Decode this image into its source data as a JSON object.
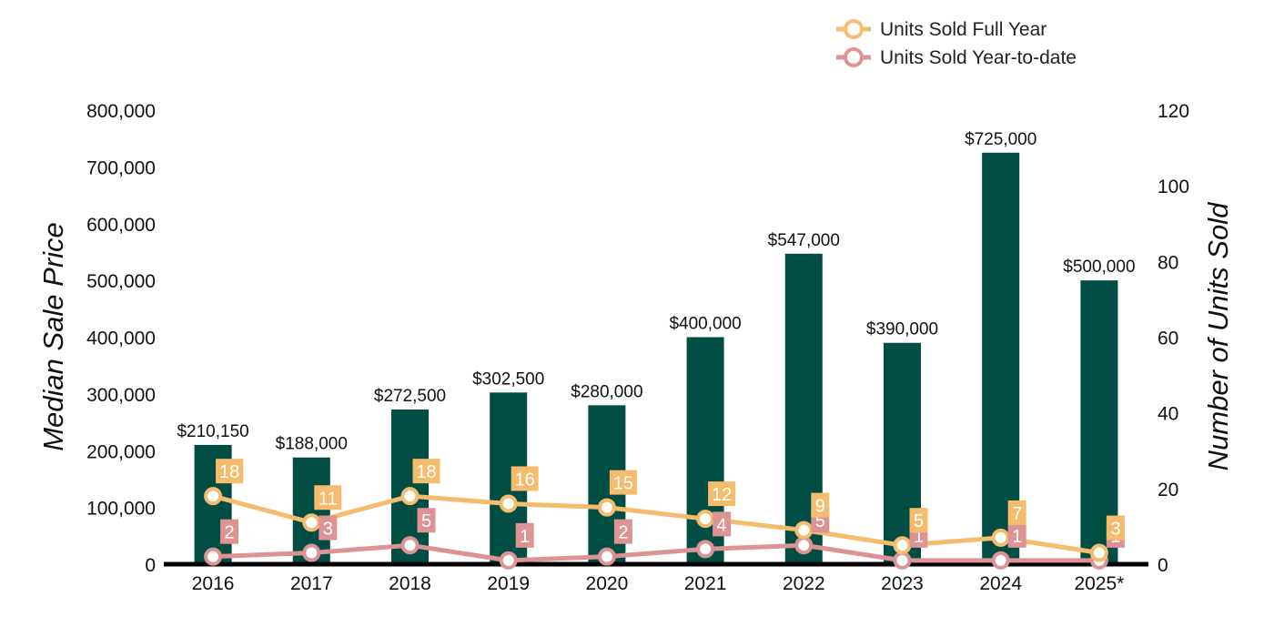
{
  "chart_data": {
    "type": "bar",
    "categories": [
      "2016",
      "2017",
      "2018",
      "2019",
      "2020",
      "2021",
      "2022",
      "2023",
      "2024",
      "2025*"
    ],
    "bars": {
      "values": [
        210150,
        188000,
        272500,
        302500,
        280000,
        400000,
        547000,
        390000,
        725000,
        500000
      ],
      "labels": [
        "$210,150",
        "$188,000",
        "$272,500",
        "$302,500",
        "$280,000",
        "$400,000",
        "$547,000",
        "$390,000",
        "$725,000",
        "$500,000"
      ],
      "color": "#004d44"
    },
    "series": [
      {
        "name": "Units Sold Full Year",
        "type": "line",
        "axis": "right",
        "values": [
          18,
          11,
          18,
          16,
          15,
          12,
          9,
          5,
          7,
          3
        ],
        "color": "#f5bc6d"
      },
      {
        "name": "Units Sold Year-to-date",
        "type": "line",
        "axis": "right",
        "values": [
          2,
          3,
          5,
          1,
          2,
          4,
          5,
          1,
          1,
          1
        ],
        "color": "#dd9393"
      }
    ],
    "y_left": {
      "label": "Median Sale Price",
      "range": [
        0,
        800000
      ],
      "ticks": [
        "0",
        "100,000",
        "200,000",
        "300,000",
        "400,000",
        "500,000",
        "600,000",
        "700,000",
        "800,000"
      ]
    },
    "y_right": {
      "label": "Number of Units Sold",
      "range": [
        0,
        120
      ],
      "ticks": [
        "0",
        "20",
        "40",
        "60",
        "80",
        "100",
        "120"
      ]
    },
    "legend_position": "top-right",
    "grid": false
  }
}
